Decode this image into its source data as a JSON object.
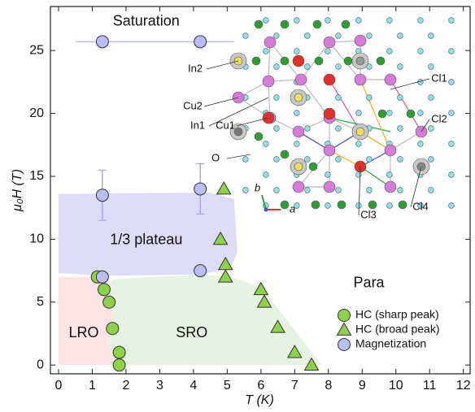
{
  "chart_data": {
    "type": "scatter",
    "x_label": "T (K)",
    "y_label": "μ₀H (T)",
    "xlim": [
      -0.24,
      12.2
    ],
    "ylim": [
      -0.7,
      28.5
    ],
    "xticks": [
      0,
      1,
      2,
      3,
      4,
      5,
      6,
      7,
      8,
      9,
      10,
      11,
      12
    ],
    "yticks": [
      0,
      5,
      10,
      15,
      20,
      25
    ],
    "legend": "lower right",
    "series": [
      {
        "name": "HC (sharp peak)",
        "marker": "circle",
        "color": "#8fd14a",
        "x": [
          1.15,
          1.35,
          1.5,
          1.6,
          1.8,
          1.8
        ],
        "y": [
          7.0,
          6.0,
          5.0,
          2.9,
          1.0,
          0.0
        ]
      },
      {
        "name": "HC (broad peak)",
        "marker": "triangle",
        "color": "#8fd14a",
        "x": [
          4.9,
          4.8,
          4.95,
          4.95,
          6.0,
          6.1,
          6.5,
          7.0,
          7.5
        ],
        "y": [
          14.0,
          10.0,
          8.0,
          7.0,
          6.0,
          5.0,
          3.0,
          1.0,
          0.0
        ]
      },
      {
        "name": "Magnetization",
        "marker": "circle",
        "color": "#b9bdf2",
        "x": [
          1.3,
          4.2,
          1.3,
          4.2,
          1.3,
          4.2
        ],
        "y": [
          25.7,
          25.7,
          13.5,
          14.0,
          7.0,
          7.5
        ],
        "yerr": [
          null,
          null,
          2,
          2,
          null,
          null
        ]
      }
    ],
    "saturation_line": {
      "color": "#b9bdf2",
      "x": [
        0.5,
        5.2
      ],
      "y": [
        25.7,
        25.7
      ]
    },
    "regions": [
      {
        "color": "#dcdcf6",
        "x": [
          0,
          4.5,
          5.2,
          5.3,
          5.1,
          4.2,
          1.5,
          0
        ],
        "y": [
          13.6,
          13.7,
          13.2,
          9,
          7.7,
          7.2,
          7.1,
          7.3
        ]
      },
      {
        "color": "#fde3e3",
        "x": [
          0,
          1.2,
          1.4,
          1.6,
          1.5,
          1.6,
          0
        ],
        "y": [
          7.0,
          7.0,
          6.0,
          4.5,
          2.0,
          0,
          0
        ]
      },
      {
        "color": "#e6f3e3",
        "x": [
          1.6,
          1.5,
          1.6,
          1.4,
          1.6,
          4.2,
          5.1,
          6.0,
          7.8
        ],
        "y": [
          0,
          2.0,
          4.5,
          6.0,
          6.8,
          7.2,
          7.0,
          6.2,
          0
        ]
      }
    ],
    "annotations": [
      {
        "text": "Saturation",
        "x": 2.6,
        "y": 27.3
      },
      {
        "text": "1/3 plateau",
        "x": 2.6,
        "y": 9.9
      },
      {
        "text": "Para",
        "x": 9.2,
        "y": 6.5
      },
      {
        "text": "LRO",
        "x": 0.75,
        "y": 2.5
      },
      {
        "text": "SRO",
        "x": 3.95,
        "y": 2.5
      }
    ]
  },
  "inset": {
    "labels": [
      "In2",
      "Cu2",
      "In1",
      "Cu1",
      "O",
      "Cl1",
      "Cl2",
      "Cl3",
      "Cl4"
    ],
    "axis_b": "b",
    "axis_a": "a"
  }
}
